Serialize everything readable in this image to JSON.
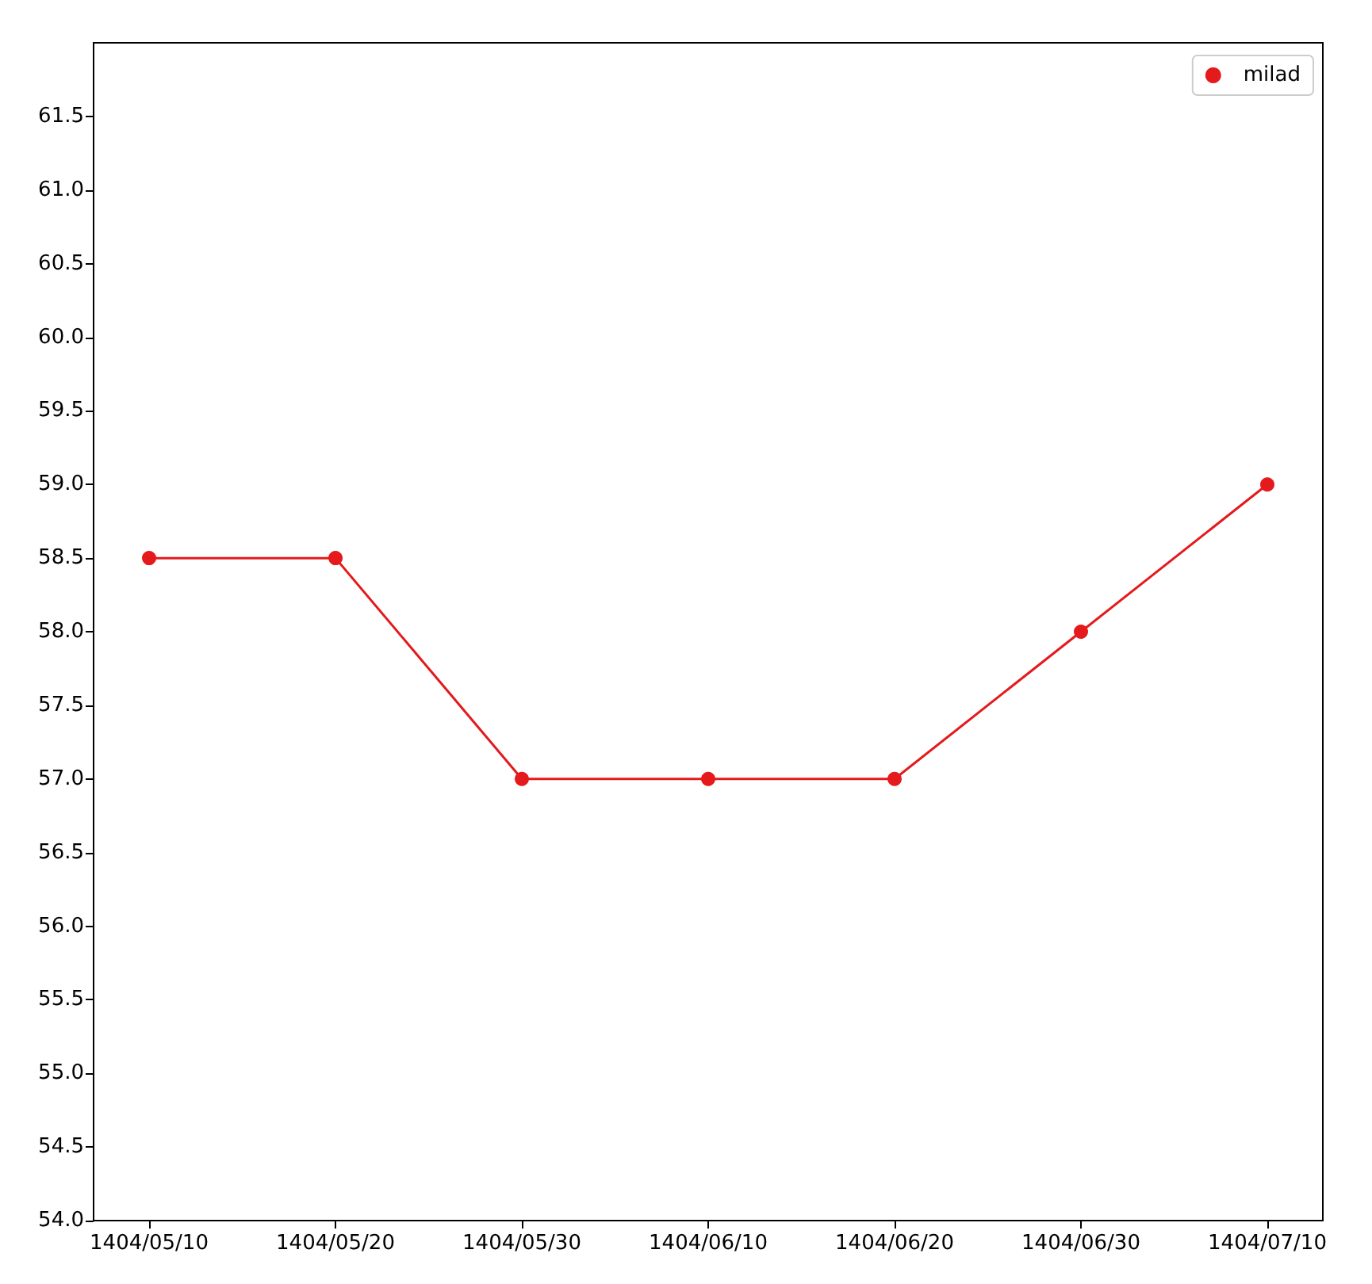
{
  "chart_data": {
    "type": "line",
    "categories": [
      "1404/05/10",
      "1404/05/20",
      "1404/05/30",
      "1404/06/10",
      "1404/06/20",
      "1404/06/30",
      "1404/07/10"
    ],
    "series": [
      {
        "name": "milad",
        "color": "#e41a1c",
        "values": [
          58.5,
          58.5,
          57.0,
          57.0,
          57.0,
          58.0,
          59.0
        ]
      }
    ],
    "ylim": [
      54,
      62
    ],
    "yticks": [
      {
        "value": 54,
        "label": "54.0"
      },
      {
        "value": 54.5,
        "label": "54.5"
      },
      {
        "value": 55,
        "label": "55.0"
      },
      {
        "value": 55.5,
        "label": "55.5"
      },
      {
        "value": 56,
        "label": "56.0"
      },
      {
        "value": 56.5,
        "label": "56.5"
      },
      {
        "value": 57,
        "label": "57.0"
      },
      {
        "value": 57.5,
        "label": "57.5"
      },
      {
        "value": 58,
        "label": "58.0"
      },
      {
        "value": 58.5,
        "label": "58.5"
      },
      {
        "value": 59,
        "label": "59.0"
      },
      {
        "value": 59.5,
        "label": "59.5"
      },
      {
        "value": 60,
        "label": "60.0"
      },
      {
        "value": 60.5,
        "label": "60.5"
      },
      {
        "value": 61,
        "label": "61.0"
      },
      {
        "value": 61.5,
        "label": "61.5"
      }
    ],
    "legend": "top right",
    "marker": "circle",
    "line_style": "solid",
    "grid": false
  }
}
